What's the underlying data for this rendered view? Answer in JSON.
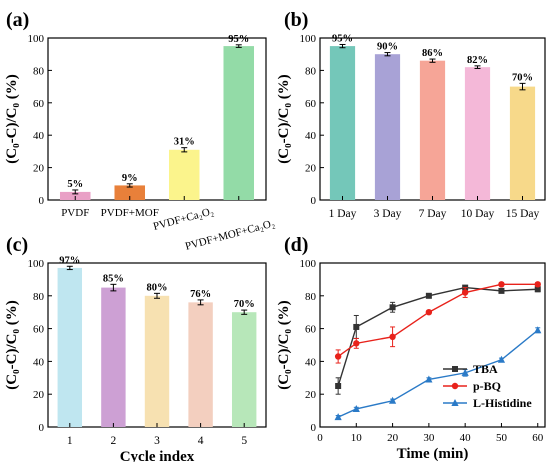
{
  "chart_data": [
    {
      "type": "bar",
      "panel_label": "(a)",
      "categories": [
        "PVDF",
        "PVDF+MOF",
        "PVDF+Ca₂O₂",
        "PVDF+MOF+Ca₂O₂"
      ],
      "values": [
        5,
        9,
        31,
        95
      ],
      "errors": [
        1.2,
        1.0,
        1.3,
        0.8
      ],
      "value_labels": [
        "5%",
        "9%",
        "31%",
        "95%"
      ],
      "colors": [
        "#e9a0c6",
        "#e8803a",
        "#fbf48c",
        "#93dba7"
      ],
      "ylabel": "(C₀-C)/C₀ (%)",
      "ylim": [
        0,
        100
      ],
      "yticks": [
        "0",
        "20",
        "40",
        "60",
        "80",
        "100"
      ]
    },
    {
      "type": "bar",
      "panel_label": "(b)",
      "categories": [
        "1 Day",
        "3 Day",
        "7 Day",
        "10 Day",
        "15 Day"
      ],
      "values": [
        95,
        90,
        86,
        82,
        70
      ],
      "errors": [
        1.0,
        1.0,
        1.0,
        0.8,
        2.0
      ],
      "value_labels": [
        "95%",
        "90%",
        "86%",
        "82%",
        "70%"
      ],
      "colors": [
        "#74c7b9",
        "#a8a2d6",
        "#f6a597",
        "#f4b8d8",
        "#f7d98a"
      ],
      "ylabel": "(C₀-C)/C₀ (%)",
      "ylim": [
        0,
        100
      ],
      "yticks": [
        "0",
        "20",
        "40",
        "60",
        "80",
        "100"
      ]
    },
    {
      "type": "bar",
      "panel_label": "(c)",
      "categories": [
        "1",
        "2",
        "3",
        "4",
        "5"
      ],
      "values": [
        97,
        85,
        80,
        76,
        70
      ],
      "errors": [
        1.0,
        2.0,
        1.5,
        1.5,
        1.3
      ],
      "value_labels": [
        "97%",
        "85%",
        "80%",
        "76%",
        "70%"
      ],
      "colors": [
        "#bfe6f0",
        "#cda0d4",
        "#f7e1b1",
        "#f3cfbf",
        "#b7e7b9"
      ],
      "xlabel": "Cycle index",
      "ylabel": "(C₀-C)/C₀ (%)",
      "ylim": [
        0,
        100
      ],
      "yticks": [
        "0",
        "20",
        "40",
        "60",
        "80",
        "100"
      ]
    },
    {
      "type": "line",
      "panel_label": "(d)",
      "xlabel": "Time (min)",
      "ylabel": "(C₀-C)/C₀ (%)",
      "xlim": [
        0,
        62
      ],
      "ylim": [
        0,
        100
      ],
      "xticks": [
        "0",
        "10",
        "20",
        "30",
        "40",
        "50",
        "60"
      ],
      "yticks": [
        "0",
        "20",
        "40",
        "60",
        "80",
        "100"
      ],
      "legend_position": "bottom-right",
      "series": [
        {
          "name": "TBA",
          "color": "#333333",
          "marker": "square",
          "x": [
            5,
            10,
            20,
            30,
            40,
            50,
            60
          ],
          "y": [
            25,
            61,
            73,
            80,
            85,
            83,
            84
          ],
          "err": [
            5,
            7,
            3,
            1,
            1,
            1,
            1.5
          ]
        },
        {
          "name": "p-BQ",
          "color": "#e8221b",
          "marker": "circle",
          "x": [
            5,
            10,
            20,
            30,
            40,
            50,
            60
          ],
          "y": [
            43,
            51,
            55,
            70,
            82,
            87,
            87
          ],
          "err": [
            4,
            3,
            6,
            1,
            3,
            1,
            1
          ]
        },
        {
          "name": "L-Histidine",
          "color": "#2a7ac7",
          "marker": "triangle",
          "x": [
            5,
            10,
            20,
            30,
            40,
            50,
            60
          ],
          "y": [
            6,
            11,
            16,
            29,
            33,
            41,
            59
          ],
          "err": [
            1,
            1,
            1,
            1,
            2,
            1,
            1.5
          ]
        }
      ]
    }
  ]
}
